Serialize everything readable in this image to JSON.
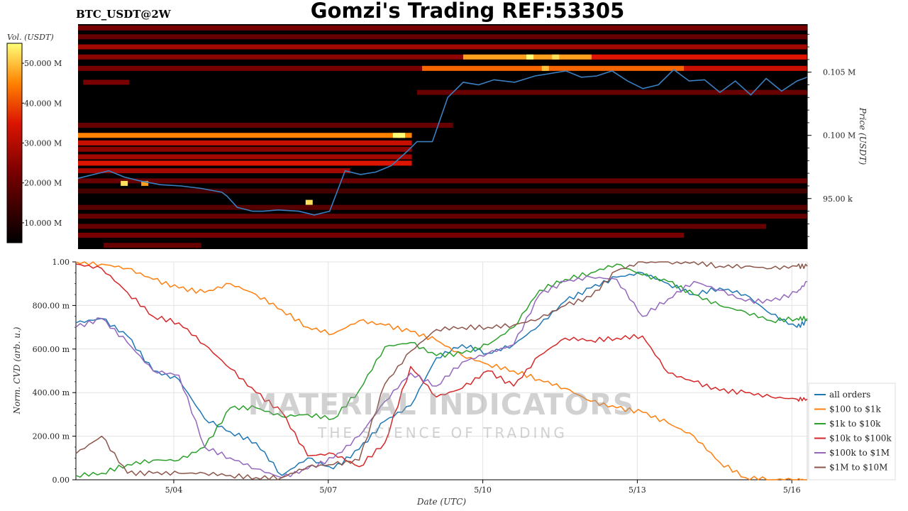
{
  "title": "Gomzi's Trading REF:53305",
  "symbol_label": "BTC_USDT@2W",
  "watermark": {
    "main": "MATERIAL INDICATORS",
    "sub": "THE SCIENCE OF TRADING"
  },
  "colors": {
    "heat_low": "#000000",
    "heat_mid": "#cc0000",
    "heat_high": "#ffff66",
    "price_line": "#3a7fc0"
  },
  "chart_data": [
    {
      "type": "heatmap",
      "name": "orderbook-heatmap",
      "colorbar": {
        "label": "Vol. (USDT)",
        "ticks": [
          "10.000 M",
          "20.000 M",
          "30.000 M",
          "40.000 M",
          "50.000 M"
        ],
        "tick_values": [
          10,
          20,
          30,
          40,
          50
        ],
        "range": [
          5,
          55
        ],
        "unit": "M USDT"
      },
      "y_axis": {
        "label": "Price (USDT)",
        "side": "right",
        "ticks": [
          "95.00 k",
          "0.100 M",
          "0.105 M"
        ],
        "tick_values": [
          95000,
          100000,
          105000
        ],
        "range": [
          91000,
          108800
        ]
      },
      "x_axis": {
        "range_days": [
          0,
          14.2
        ],
        "start_date": "5/02"
      },
      "price_series": {
        "name": "",
        "t": [
          0,
          0.4,
          0.6,
          0.9,
          1.2,
          1.6,
          2.0,
          2.4,
          2.8,
          2.9,
          3.1,
          3.4,
          3.6,
          3.9,
          4.3,
          4.6,
          4.9,
          5.2,
          5.5,
          5.8,
          6.1,
          6.4,
          6.6,
          6.9,
          7.2,
          7.5,
          7.8,
          8.1,
          8.5,
          8.9,
          9.2,
          9.5,
          9.8,
          10.1,
          10.4,
          10.7,
          11.0,
          11.3,
          11.6,
          11.9,
          12.2,
          12.5,
          12.8,
          13.1,
          13.4,
          13.7,
          14.0,
          14.2
        ],
        "price": [
          96600,
          97000,
          97200,
          96700,
          96400,
          96100,
          96000,
          95800,
          95500,
          95200,
          94300,
          94000,
          94000,
          94100,
          94000,
          93700,
          94000,
          97200,
          96900,
          97100,
          97600,
          98700,
          99500,
          99500,
          103000,
          104200,
          104000,
          104400,
          104200,
          104700,
          104900,
          105100,
          104600,
          104700,
          105100,
          104300,
          103700,
          104000,
          105200,
          104300,
          104400,
          103400,
          104300,
          103200,
          104500,
          103500,
          104300,
          104600
        ]
      },
      "bands": [
        {
          "price": 108500,
          "t0": 0,
          "t1": 14.2,
          "level": 0.35
        },
        {
          "price": 107800,
          "t0": 0,
          "t1": 14.2,
          "level": 0.3
        },
        {
          "price": 107000,
          "t0": 0,
          "t1": 14.2,
          "level": 0.45
        },
        {
          "price": 106200,
          "t0": 0,
          "t1": 14.2,
          "level": 0.4
        },
        {
          "price": 106200,
          "t0": 7.5,
          "t1": 10.0,
          "level": 0.85
        },
        {
          "price": 106200,
          "t0": 10.0,
          "t1": 14.2,
          "level": 0.6
        },
        {
          "price": 105300,
          "t0": 0,
          "t1": 14.2,
          "level": 0.35
        },
        {
          "price": 105300,
          "t0": 6.7,
          "t1": 11.8,
          "level": 0.75
        },
        {
          "price": 105300,
          "t0": 11.8,
          "t1": 14.2,
          "level": 0.55
        },
        {
          "price": 104200,
          "t0": 0.1,
          "t1": 1.0,
          "level": 0.35
        },
        {
          "price": 103400,
          "t0": 6.6,
          "t1": 14.2,
          "level": 0.3
        },
        {
          "price": 100800,
          "t0": 0,
          "t1": 7.3,
          "level": 0.3
        },
        {
          "price": 100000,
          "t0": 0,
          "t1": 6.5,
          "level": 0.8
        },
        {
          "price": 99400,
          "t0": 0,
          "t1": 6.5,
          "level": 0.55
        },
        {
          "price": 98900,
          "t0": 0,
          "t1": 6.5,
          "level": 0.4
        },
        {
          "price": 98300,
          "t0": 0,
          "t1": 6.5,
          "level": 0.45
        },
        {
          "price": 97800,
          "t0": 0,
          "t1": 6.5,
          "level": 0.6
        },
        {
          "price": 97200,
          "t0": 0,
          "t1": 5.3,
          "level": 0.45
        },
        {
          "price": 96400,
          "t0": 0,
          "t1": 14.2,
          "level": 0.3
        },
        {
          "price": 95600,
          "t0": 0,
          "t1": 14.2,
          "level": 0.2
        },
        {
          "price": 94300,
          "t0": 0,
          "t1": 14.2,
          "level": 0.25
        },
        {
          "price": 93600,
          "t0": 0,
          "t1": 14.2,
          "level": 0.3
        },
        {
          "price": 92800,
          "t0": 0,
          "t1": 13.4,
          "level": 0.3
        },
        {
          "price": 92100,
          "t0": 0,
          "t1": 11.8,
          "level": 0.35
        },
        {
          "price": 91300,
          "t0": 0.5,
          "t1": 2.4,
          "level": 0.3
        }
      ],
      "hotspots": [
        {
          "t": 0.9,
          "price": 96200,
          "level": 0.95
        },
        {
          "t": 1.3,
          "price": 96200,
          "level": 0.85
        },
        {
          "t": 4.5,
          "price": 94700,
          "level": 0.95
        },
        {
          "t": 6.2,
          "price": 100000,
          "level": 1.0
        },
        {
          "t": 6.3,
          "price": 100000,
          "level": 1.0
        },
        {
          "t": 8.8,
          "price": 106200,
          "level": 1.0
        },
        {
          "t": 9.3,
          "price": 106200,
          "level": 0.95
        },
        {
          "t": 9.1,
          "price": 105300,
          "level": 0.9
        }
      ]
    },
    {
      "type": "line",
      "name": "cvd",
      "xlabel": "Date (UTC)",
      "ylabel": "Norm. CVD (arb. u.)",
      "x_ticks": [
        "5/04",
        "5/07",
        "5/10",
        "5/13",
        "5/16"
      ],
      "x_tick_values": [
        1.9,
        4.9,
        7.9,
        10.9,
        13.9
      ],
      "x_range": [
        0,
        14.2
      ],
      "y_ticks": [
        "0.00",
        "200.00 m",
        "400.00 m",
        "600.00 m",
        "800.00 m",
        "1.00"
      ],
      "y_tick_values": [
        0,
        0.2,
        0.4,
        0.6,
        0.8,
        1.0
      ],
      "ylim": [
        0,
        1
      ],
      "grid": true,
      "legend_position": "bottom-right",
      "x": [
        0,
        0.5,
        1.0,
        1.5,
        2.0,
        2.5,
        3.0,
        3.5,
        4.0,
        4.5,
        5.0,
        5.5,
        6.0,
        6.5,
        7.0,
        7.5,
        8.0,
        8.5,
        9.0,
        9.5,
        10.0,
        10.5,
        11.0,
        11.5,
        12.0,
        12.5,
        13.0,
        13.5,
        14.0,
        14.2
      ],
      "series": [
        {
          "name": "all orders",
          "color": "#1f77b4",
          "values": [
            0.72,
            0.74,
            0.66,
            0.5,
            0.46,
            0.28,
            0.22,
            0.17,
            0.02,
            0.1,
            0.05,
            0.14,
            0.27,
            0.34,
            0.56,
            0.62,
            0.58,
            0.62,
            0.71,
            0.82,
            0.88,
            0.93,
            0.95,
            0.9,
            0.85,
            0.88,
            0.85,
            0.76,
            0.7,
            0.73
          ]
        },
        {
          "name": "$100 to $1k",
          "color": "#ff7f0e",
          "values": [
            1.0,
            0.99,
            0.97,
            0.92,
            0.88,
            0.86,
            0.9,
            0.85,
            0.78,
            0.7,
            0.67,
            0.73,
            0.71,
            0.68,
            0.64,
            0.57,
            0.53,
            0.5,
            0.46,
            0.42,
            0.36,
            0.33,
            0.31,
            0.26,
            0.2,
            0.08,
            0.01,
            0,
            0,
            0
          ]
        },
        {
          "name": "$1k to $10k",
          "color": "#2ca02c",
          "values": [
            0.02,
            0.03,
            0.07,
            0.09,
            0.09,
            0.15,
            0.33,
            0.33,
            0.29,
            0.3,
            0.28,
            0.41,
            0.61,
            0.63,
            0.57,
            0.58,
            0.62,
            0.7,
            0.87,
            0.92,
            0.95,
            0.99,
            0.94,
            0.91,
            0.85,
            0.8,
            0.77,
            0.73,
            0.74,
            0.74
          ]
        },
        {
          "name": "$10k to $100k",
          "color": "#d62728",
          "values": [
            0.99,
            0.97,
            0.86,
            0.75,
            0.72,
            0.62,
            0.51,
            0.4,
            0.31,
            0.11,
            0.12,
            0.06,
            0.17,
            0.52,
            0.38,
            0.42,
            0.5,
            0.43,
            0.57,
            0.65,
            0.64,
            0.65,
            0.66,
            0.49,
            0.45,
            0.41,
            0.4,
            0.38,
            0.37,
            0.37
          ]
        },
        {
          "name": "$100k to $1M",
          "color": "#9467bd",
          "values": [
            0.7,
            0.74,
            0.63,
            0.5,
            0.48,
            0.15,
            0.1,
            0.05,
            0.01,
            0.05,
            0.1,
            0.2,
            0.36,
            0.49,
            0.43,
            0.54,
            0.58,
            0.62,
            0.85,
            0.91,
            0.93,
            0.92,
            0.75,
            0.83,
            0.91,
            0.87,
            0.82,
            0.82,
            0.86,
            0.91
          ]
        },
        {
          "name": "$1M to $10M",
          "color": "#8c564b",
          "values": [
            0.12,
            0.2,
            0.03,
            0.03,
            0.03,
            0.03,
            0.02,
            0.01,
            0.01,
            0.06,
            0.07,
            0.09,
            0.44,
            0.59,
            0.69,
            0.7,
            0.7,
            0.71,
            0.74,
            0.8,
            0.84,
            0.96,
            1.0,
            1.0,
            1.0,
            0.98,
            0.98,
            0.97,
            0.98,
            0.98
          ]
        }
      ]
    }
  ]
}
